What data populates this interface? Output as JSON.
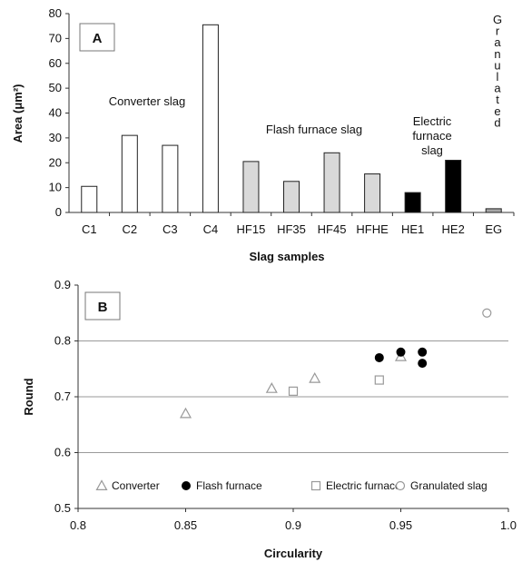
{
  "chart_data": [
    {
      "type": "bar",
      "panel_label": "A",
      "xlabel": "Slag samples",
      "ylabel": "Area (μm²)",
      "ylim": [
        0,
        80
      ],
      "yticks": [
        0,
        10,
        20,
        30,
        40,
        50,
        60,
        70,
        80
      ],
      "categories": [
        "C1",
        "C2",
        "C3",
        "C4",
        "HF15",
        "HF35",
        "HF45",
        "HFHE",
        "HE1",
        "HE2",
        "EG"
      ],
      "values": [
        10.5,
        31,
        27,
        75.5,
        20.5,
        12.5,
        24,
        15.5,
        8,
        21,
        1.5
      ],
      "groups": [
        {
          "name": "Converter slag",
          "lines": [
            "Converter slag"
          ],
          "fill": "#ffffff"
        },
        {
          "name": "Flash furnace slag",
          "lines": [
            "Flash furnace slag"
          ],
          "fill": "#d9d9d9"
        },
        {
          "name": "Electric furnace slag",
          "lines": [
            "Electric",
            "furnace",
            "slag"
          ],
          "fill": "#000000"
        },
        {
          "name": "Granulated",
          "lines": [
            "G",
            "r",
            "a",
            "n",
            "u",
            "l",
            "a",
            "t",
            "e",
            "d"
          ],
          "fill": "#a6a6a6"
        }
      ],
      "bar_group": [
        0,
        0,
        0,
        0,
        1,
        1,
        1,
        1,
        2,
        2,
        3
      ]
    },
    {
      "type": "scatter",
      "panel_label": "B",
      "xlabel": "Circularity",
      "ylabel": "Round",
      "xlim": [
        0.8,
        1.0
      ],
      "ylim": [
        0.5,
        0.9
      ],
      "xticks": [
        "0.8",
        "0.85",
        "0.9",
        "0.95",
        "1.0"
      ],
      "yticks": [
        "0.5",
        "0.6",
        "0.7",
        "0.8",
        "0.9"
      ],
      "gridlines_y": [
        0.6,
        0.7,
        0.8
      ],
      "series": [
        {
          "name": "Converter",
          "marker": "triangle",
          "color": "#999999",
          "x": [
            0.85,
            0.89,
            0.91,
            0.95
          ],
          "y": [
            0.67,
            0.715,
            0.733,
            0.772
          ]
        },
        {
          "name": "Flash furnace",
          "marker": "filled-circle",
          "color": "#000000",
          "x": [
            0.94,
            0.95,
            0.96,
            0.96
          ],
          "y": [
            0.77,
            0.78,
            0.78,
            0.76
          ]
        },
        {
          "name": "Electric furnace",
          "marker": "square",
          "color": "#999999",
          "x": [
            0.9,
            0.94
          ],
          "y": [
            0.71,
            0.73
          ]
        },
        {
          "name": "Granulated slag",
          "marker": "open-circle",
          "color": "#999999",
          "x": [
            0.99
          ],
          "y": [
            0.85
          ]
        }
      ]
    }
  ]
}
